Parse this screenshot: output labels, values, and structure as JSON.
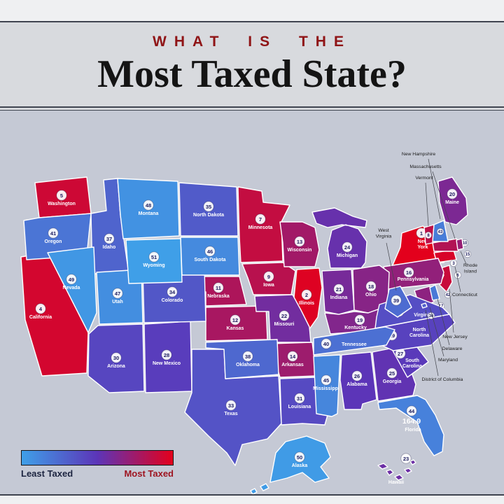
{
  "header": {
    "kicker": "WHAT IS THE",
    "kicker_color": "#8f1416",
    "title": "Most Taxed State?",
    "title_color": "#141414"
  },
  "legend": {
    "least_label": "Least Taxed",
    "most_label": "Most Taxed",
    "least_color": "#1c2440",
    "most_color": "#9e1420",
    "gradient": [
      "#3F9FE8",
      "#5C35B8",
      "#E3001C"
    ]
  },
  "map": {
    "states": [
      {
        "id": "ny",
        "name": "New York",
        "rank": 1,
        "color": "#E3001C"
      },
      {
        "id": "il",
        "name": "Illinois",
        "rank": 2,
        "color": "#DE0222"
      },
      {
        "id": "ct",
        "name": "Connecticut",
        "rank": 3,
        "color": "#D80428"
      },
      {
        "id": "ca",
        "name": "California",
        "rank": 4,
        "color": "#D3062F"
      },
      {
        "id": "wa",
        "name": "Washington",
        "rank": 5,
        "color": "#CD0835"
      },
      {
        "id": "nj",
        "name": "New Jersey",
        "rank": 6,
        "color": "#C80B3B"
      },
      {
        "id": "mn",
        "name": "Minnesota",
        "rank": 7,
        "color": "#C30D41"
      },
      {
        "id": "vt",
        "name": "Vermont",
        "rank": 8,
        "color": "#BD0F48"
      },
      {
        "id": "ia",
        "name": "Iowa",
        "rank": 9,
        "color": "#B8114E"
      },
      {
        "id": "ma",
        "name": "Massachusetts",
        "rank": 10,
        "color": "#B21354"
      },
      {
        "id": "ne",
        "name": "Nebraska",
        "rank": 11,
        "color": "#AD155A"
      },
      {
        "id": "ks",
        "name": "Kansas",
        "rank": 12,
        "color": "#A81761"
      },
      {
        "id": "wi",
        "name": "Wisconsin",
        "rank": 13,
        "color": "#A21967"
      },
      {
        "id": "ar",
        "name": "Arkansas",
        "rank": 14,
        "color": "#9D1C6D"
      },
      {
        "id": "ri",
        "name": "Rhode Island",
        "rank": 15,
        "color": "#971E73"
      },
      {
        "id": "pa",
        "name": "Pennsylvania",
        "rank": 16,
        "color": "#92207A"
      },
      {
        "id": "md",
        "name": "Maryland",
        "rank": 17,
        "color": "#8D2280"
      },
      {
        "id": "oh",
        "name": "Ohio",
        "rank": 18,
        "color": "#872486"
      },
      {
        "id": "ky",
        "name": "Kentucky",
        "rank": 19,
        "color": "#82268C"
      },
      {
        "id": "me",
        "name": "Maine",
        "rank": 20,
        "color": "#7C2893"
      },
      {
        "id": "in",
        "name": "Indiana",
        "rank": 21,
        "color": "#772A99"
      },
      {
        "id": "mo",
        "name": "Missouri",
        "rank": 22,
        "color": "#722D9F"
      },
      {
        "id": "hi",
        "name": "Hawaii",
        "rank": 23,
        "color": "#6C2FA5"
      },
      {
        "id": "mi",
        "name": "Michigan",
        "rank": 24,
        "color": "#6731AC"
      },
      {
        "id": "ga",
        "name": "Georgia",
        "rank": 25,
        "color": "#6133B2"
      },
      {
        "id": "al",
        "name": "Alabama",
        "rank": 26,
        "color": "#5C35B8"
      },
      {
        "id": "sc",
        "name": "South Carolina",
        "rank": 27,
        "color": "#5A39BA"
      },
      {
        "id": "nm",
        "name": "New Mexico",
        "rank": 28,
        "color": "#593DBC"
      },
      {
        "id": "nc",
        "name": "North Carolina",
        "rank": 29,
        "color": "#5842BE"
      },
      {
        "id": "az",
        "name": "Arizona",
        "rank": 30,
        "color": "#5746C0"
      },
      {
        "id": "la",
        "name": "Louisiana",
        "rank": 31,
        "color": "#564AC2"
      },
      {
        "id": "va",
        "name": "Virginia",
        "rank": 32,
        "color": "#554EC4"
      },
      {
        "id": "tx",
        "name": "Texas",
        "rank": 33,
        "color": "#5453C6"
      },
      {
        "id": "co",
        "name": "Colorado",
        "rank": 34,
        "color": "#5257C7"
      },
      {
        "id": "nd",
        "name": "North Dakota",
        "rank": 35,
        "color": "#515BC9"
      },
      {
        "id": "dc",
        "name": "District of Columbia",
        "rank": 36,
        "color": "#505FCB"
      },
      {
        "id": "id",
        "name": "Idaho",
        "rank": 37,
        "color": "#4F64CD"
      },
      {
        "id": "ok",
        "name": "Oklahoma",
        "rank": 38,
        "color": "#4E68CF"
      },
      {
        "id": "wv",
        "name": "West Virginia",
        "rank": 39,
        "color": "#4D6CD1"
      },
      {
        "id": "tn",
        "name": "Tennessee",
        "rank": 40,
        "color": "#4C70D3"
      },
      {
        "id": "or",
        "name": "Oregon",
        "rank": 41,
        "color": "#4B75D5"
      },
      {
        "id": "de",
        "name": "Delaware",
        "rank": 42,
        "color": "#4979D7"
      },
      {
        "id": "nh",
        "name": "New Hampshire",
        "rank": 43,
        "color": "#487DD9"
      },
      {
        "id": "fl",
        "name": "Florida",
        "rank": 44,
        "color": "#4781DB",
        "value_label": "164.9"
      },
      {
        "id": "ms",
        "name": "Mississippi",
        "rank": 45,
        "color": "#4686DC"
      },
      {
        "id": "sd",
        "name": "South Dakota",
        "rank": 46,
        "color": "#458ADE"
      },
      {
        "id": "ut",
        "name": "Utah",
        "rank": 47,
        "color": "#438EE0"
      },
      {
        "id": "mt",
        "name": "Montana",
        "rank": 48,
        "color": "#4292E2"
      },
      {
        "id": "nv",
        "name": "Nevada",
        "rank": 49,
        "color": "#4197E4"
      },
      {
        "id": "ak",
        "name": "Alaska",
        "rank": 50,
        "color": "#409BE6"
      },
      {
        "id": "wy",
        "name": "Wyoming",
        "rank": 51,
        "color": "#3F9FE8"
      }
    ],
    "callouts": [
      {
        "id": "new-hampshire",
        "label": "New Hampshire"
      },
      {
        "id": "massachusetts",
        "label": "Massachusetts"
      },
      {
        "id": "vermont",
        "label": "Vermont"
      },
      {
        "id": "west-virginia",
        "label": "West Virginia"
      },
      {
        "id": "rhode-island",
        "label": "Rhode Island"
      },
      {
        "id": "connecticut",
        "label": "Connecticut"
      },
      {
        "id": "new-jersey",
        "label": "New Jersey"
      },
      {
        "id": "delaware",
        "label": "Delaware"
      },
      {
        "id": "maryland",
        "label": "Maryland"
      },
      {
        "id": "district-of-columbia",
        "label": "District of Columbia"
      }
    ]
  }
}
